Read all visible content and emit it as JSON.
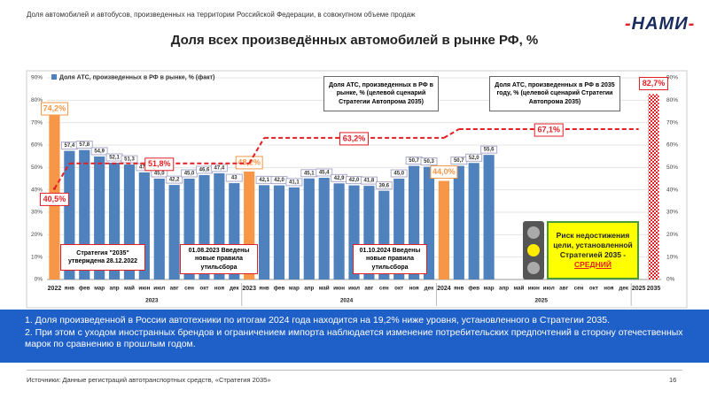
{
  "header": {
    "subtitle": "Доля автомобилей и автобусов, произведенных на территории Российской Федерации, в совокупном объеме продаж",
    "logo": "НАМИ"
  },
  "chart_data": {
    "type": "bar",
    "title": "Доля всех произведённых автомобилей в рынке РФ, %",
    "categories": [
      "2022",
      "янв",
      "фев",
      "мар",
      "апр",
      "май",
      "июн",
      "июл",
      "авг",
      "сен",
      "окт",
      "ноя",
      "дек",
      "2023",
      "янв",
      "фев",
      "мар",
      "апр",
      "май",
      "июн",
      "июл",
      "авг",
      "сен",
      "окт",
      "ноя",
      "дек",
      "2024",
      "янв",
      "фев",
      "мар",
      "апр",
      "май",
      "июн",
      "июл",
      "авг",
      "сен",
      "окт",
      "ноя",
      "дек",
      "2025",
      "2035"
    ],
    "groups": [
      "2023",
      "2024",
      "2025"
    ],
    "series": [
      {
        "name": "Доля АТС, произведенных в РФ в рынке, % (факт)",
        "color": "#4f81bd",
        "values": [
          null,
          57.4,
          57.8,
          54.9,
          52.1,
          51.3,
          47.8,
          45.0,
          42.2,
          45.0,
          46.6,
          47.4,
          43,
          null,
          42.1,
          42.0,
          41.1,
          45.1,
          45.4,
          42.9,
          42.0,
          41.8,
          39.6,
          45.0,
          50.7,
          50.3,
          null,
          50.7,
          52.0,
          55.6,
          null,
          null,
          null,
          null,
          null,
          null,
          null,
          null,
          null,
          null,
          null
        ],
        "value_labels": [
          null,
          "57,4",
          "57,8",
          "54,9",
          "52,1",
          "51,3",
          "47,8",
          "45,0",
          "42,2",
          "45,0",
          "46,6",
          "47,4",
          "43",
          null,
          "42,1",
          "42,0",
          "41,1",
          "45,1",
          "45,4",
          "42,9",
          "42,0",
          "41,8",
          "39,6",
          "45,0",
          "50,7",
          "50,3",
          null,
          "50,7",
          "52,0",
          "55,6",
          null,
          null,
          null,
          null,
          null,
          null,
          null,
          null,
          null,
          null,
          null
        ]
      },
      {
        "color": "#f79646",
        "values": [
          74.2,
          null,
          null,
          null,
          null,
          null,
          null,
          null,
          null,
          null,
          null,
          null,
          null,
          48.2,
          null,
          null,
          null,
          null,
          null,
          null,
          null,
          null,
          null,
          null,
          null,
          null,
          44.0,
          null,
          null,
          null,
          null,
          null,
          null,
          null,
          null,
          null,
          null,
          null,
          null,
          null,
          null
        ],
        "value_labels": [
          "74,2%",
          null,
          null,
          null,
          null,
          null,
          null,
          null,
          null,
          null,
          null,
          null,
          null,
          "48,2%",
          null,
          null,
          null,
          null,
          null,
          null,
          null,
          null,
          null,
          null,
          null,
          null,
          "44,0%",
          null,
          null,
          null,
          null,
          null,
          null,
          null,
          null,
          null,
          null,
          null,
          null,
          null,
          null
        ]
      }
    ],
    "target": {
      "color": "#e31e24",
      "categories": [
        "2022",
        "2023",
        "2024",
        "2025",
        "2035"
      ],
      "values": [
        40.5,
        51.8,
        63.2,
        67.1,
        82.7
      ],
      "value_labels": [
        "40,5%",
        "51,8%",
        "63,2%",
        "67,1%",
        "82,7%"
      ]
    },
    "ylim": [
      0,
      90
    ],
    "yticks": [
      {
        "value": 0,
        "label": "0%"
      },
      {
        "value": 10,
        "label": "10%"
      },
      {
        "value": 20,
        "label": "20%"
      },
      {
        "value": 30,
        "label": "30%"
      },
      {
        "value": 40,
        "label": "40%"
      },
      {
        "value": 50,
        "label": "50%"
      },
      {
        "value": 60,
        "label": "60%"
      },
      {
        "value": 70,
        "label": "70%"
      },
      {
        "value": 80,
        "label": "80%"
      },
      {
        "value": 90,
        "label": "90%"
      }
    ],
    "grid": true,
    "annotations": [
      "Доля АТС, произведенных в РФ в рынке, % (целевой сценарий Стратегии Автопрома 2035)",
      "Доля АТС, произведенных в РФ в 2035 году, % (целевой сценарий Стратегии Автопрома 2035)",
      "Стратегия \"2035\" утверждена 28.12.2022",
      "01.08.2023 Введены новые правила утильсбора",
      "01.10.2024 Введены новые правила утильсбора"
    ],
    "risk": {
      "text": "Риск недостижения цели, установленной Стратегией 2035 -",
      "level": "СРЕДНИЙ"
    }
  },
  "conclusions": [
    "1. Доля произведенной в России автотехники по итогам 2024 года находится на 19,2% ниже уровня, установленного в Стратегии 2035.",
    "2. При этом с уходом иностранных брендов и ограничением импорта наблюдается изменение потребительских предпочтений в сторону отечественных марок по сравнению в прошлым годом."
  ],
  "footer": {
    "source": "Источники: Данные регистраций автотранспортных средств, «Стратегия 2035»",
    "page": "16"
  }
}
